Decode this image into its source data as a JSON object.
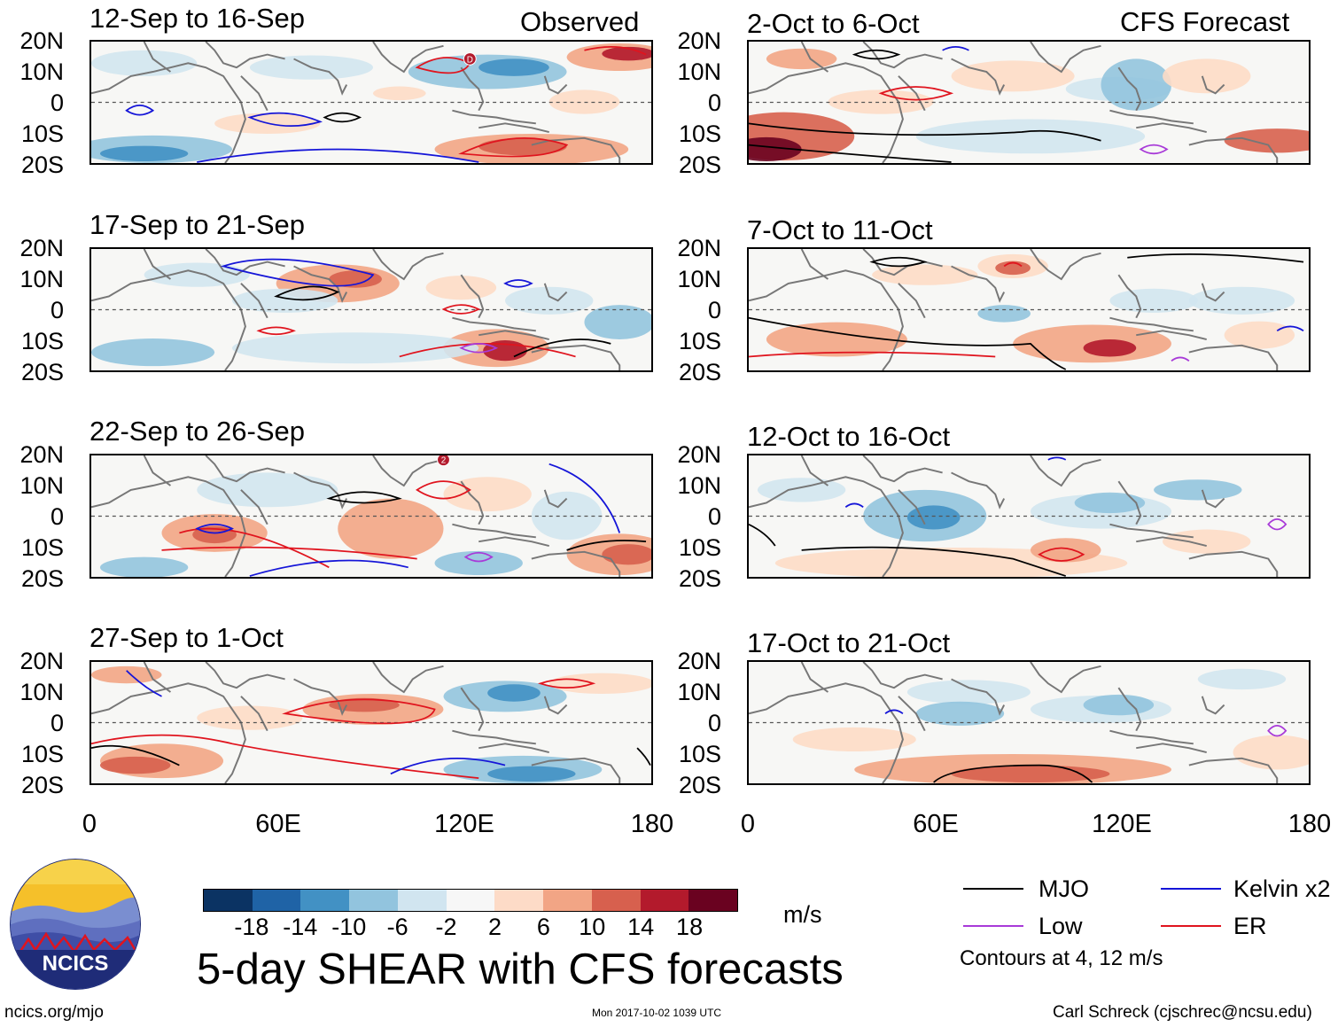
{
  "observed_label": "Observed",
  "forecast_label": "CFS Forecast",
  "panels_observed": [
    {
      "title": "12-Sep to 16-Sep",
      "marker": "D"
    },
    {
      "title": "17-Sep to 21-Sep"
    },
    {
      "title": "22-Sep to 26-Sep",
      "marker": "2"
    },
    {
      "title": "27-Sep to 1-Oct"
    }
  ],
  "panels_forecast": [
    {
      "title": "2-Oct to 6-Oct"
    },
    {
      "title": "7-Oct to 11-Oct"
    },
    {
      "title": "12-Oct to 16-Oct"
    },
    {
      "title": "17-Oct to 21-Oct"
    }
  ],
  "lat_labels": [
    "20N",
    "10N",
    "0",
    "10S",
    "20S"
  ],
  "lon_labels": [
    "0",
    "60E",
    "120E",
    "180"
  ],
  "colorbar": {
    "colors": [
      "#0b3363",
      "#1f63a6",
      "#4291c4",
      "#92c4de",
      "#d1e5f0",
      "#f7f7f7",
      "#fddbc7",
      "#f2a585",
      "#d7604e",
      "#b31a2c",
      "#6a0220"
    ],
    "labels": [
      "-18",
      "-14",
      "-10",
      "-6",
      "-2",
      "2",
      "6",
      "10",
      "14",
      "18"
    ],
    "unit": "m/s"
  },
  "main_title": "5-day SHEAR with CFS forecasts",
  "legend": [
    {
      "label": "MJO",
      "color": "#000000"
    },
    {
      "label": "Kelvin x2",
      "color": "#1515d8"
    },
    {
      "label": "Low",
      "color": "#a83ad8"
    },
    {
      "label": "ER",
      "color": "#e0141e"
    }
  ],
  "contour_note": "Contours at 4, 12 m/s",
  "logo_text": "NCICS",
  "footer": {
    "left": "ncics.org/mjo",
    "middle": "Mon 2017-10-02 1039 UTC",
    "right": "Carl Schreck (cjschrec@ncsu.edu)"
  }
}
